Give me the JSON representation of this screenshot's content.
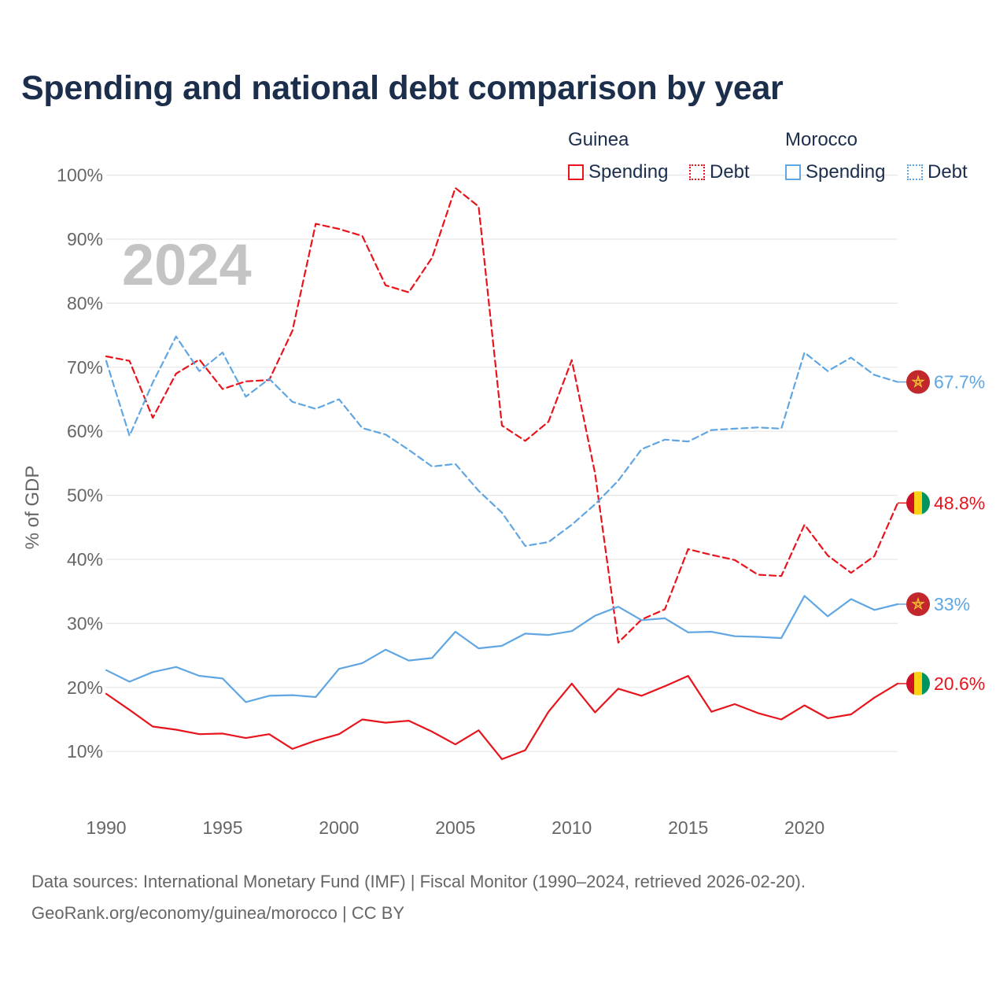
{
  "title": "Spending and national debt comparison by year",
  "footer": {
    "line1": "Data sources: International Monetary Fund (IMF) | Fiscal Monitor (1990–2024, retrieved 2026-02-20).",
    "line2": "GeoRank.org/economy/guinea/morocco | CC BY"
  },
  "legend": {
    "guinea": {
      "title": "Guinea",
      "spending": "Spending",
      "debt": "Debt"
    },
    "morocco": {
      "title": "Morocco",
      "spending": "Spending",
      "debt": "Debt"
    }
  },
  "colors": {
    "guinea": "#e8141c",
    "morocco": "#5fa6e2",
    "grid": "#e6e6e6",
    "axis_text": "#666666",
    "year_watermark": "#c4c4c4"
  },
  "chart_data": {
    "type": "line",
    "title": "Spending and national debt comparison by year",
    "ylabel": "% of GDP",
    "xlabel": "",
    "year_label": "2024",
    "xlim": [
      1990,
      2024
    ],
    "ylim": [
      0,
      100
    ],
    "x_ticks": [
      1990,
      1995,
      2000,
      2005,
      2010,
      2015,
      2020
    ],
    "y_ticks": [
      10,
      20,
      30,
      40,
      50,
      60,
      70,
      80,
      90,
      100
    ],
    "y_tick_labels": [
      "10%",
      "20%",
      "30%",
      "40%",
      "50%",
      "60%",
      "70%",
      "80%",
      "90%",
      "100%"
    ],
    "x": [
      1990,
      1991,
      1992,
      1993,
      1994,
      1995,
      1996,
      1997,
      1998,
      1999,
      2000,
      2001,
      2002,
      2003,
      2004,
      2005,
      2006,
      2007,
      2008,
      2009,
      2010,
      2011,
      2012,
      2013,
      2014,
      2015,
      2016,
      2017,
      2018,
      2019,
      2020,
      2021,
      2022,
      2023,
      2024
    ],
    "series": [
      {
        "name": "Guinea Spending",
        "country": "guinea",
        "style": "solid",
        "end_label": "20.6%",
        "values": [
          19.0,
          16.5,
          13.9,
          13.4,
          12.7,
          12.8,
          12.1,
          12.7,
          10.4,
          11.7,
          12.7,
          15.0,
          14.5,
          14.8,
          13.1,
          11.1,
          13.3,
          8.8,
          10.2,
          16.2,
          20.6,
          16.1,
          19.8,
          18.7,
          20.2,
          21.8,
          16.2,
          17.4,
          16.0,
          15.0,
          17.2,
          15.2,
          15.8,
          18.4,
          20.6
        ]
      },
      {
        "name": "Guinea Debt",
        "country": "guinea",
        "style": "dashed",
        "end_label": "48.8%",
        "values": [
          71.7,
          71.0,
          62.1,
          69.0,
          71.2,
          66.6,
          67.8,
          68.0,
          75.7,
          92.4,
          91.6,
          90.5,
          82.8,
          81.7,
          87.1,
          98.0,
          95.1,
          60.9,
          58.5,
          61.5,
          71.1,
          53.4,
          27.0,
          30.6,
          32.2,
          41.6,
          40.7,
          39.9,
          37.6,
          37.4,
          45.4,
          40.6,
          37.9,
          40.5,
          48.8
        ]
      },
      {
        "name": "Morocco Spending",
        "country": "morocco",
        "style": "solid",
        "end_label": "33%",
        "values": [
          22.7,
          20.9,
          22.4,
          23.2,
          21.8,
          21.4,
          17.7,
          18.7,
          18.8,
          18.5,
          22.9,
          23.8,
          25.9,
          24.2,
          24.6,
          28.7,
          26.1,
          26.5,
          28.4,
          28.2,
          28.8,
          31.2,
          32.6,
          30.5,
          30.8,
          28.6,
          28.7,
          28.0,
          27.9,
          27.7,
          34.3,
          31.1,
          33.8,
          32.1,
          33.0
        ]
      },
      {
        "name": "Morocco Debt",
        "country": "morocco",
        "style": "dashed",
        "end_label": "67.7%",
        "values": [
          71.0,
          59.3,
          67.6,
          74.8,
          69.4,
          72.3,
          65.4,
          68.2,
          64.6,
          63.5,
          65.0,
          60.5,
          59.5,
          57.1,
          54.5,
          54.9,
          50.7,
          47.3,
          42.1,
          42.7,
          45.4,
          48.6,
          52.3,
          57.2,
          58.7,
          58.4,
          60.2,
          60.4,
          60.6,
          60.4,
          72.3,
          69.4,
          71.5,
          68.8,
          67.7
        ]
      }
    ]
  }
}
